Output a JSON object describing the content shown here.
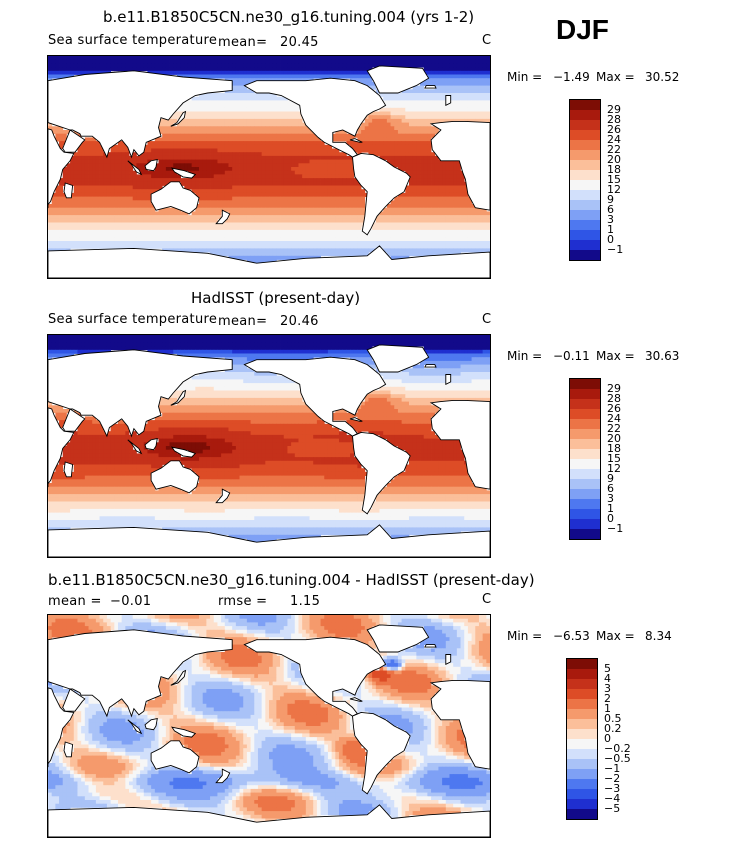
{
  "season": "DJF",
  "colors": {
    "sst_scale": [
      "#120a8a",
      "#1f2fd0",
      "#2f55e6",
      "#4e78f0",
      "#7ea0f5",
      "#a9c2f7",
      "#d2e0fb",
      "#f6f6f6",
      "#fde0cc",
      "#fbbf9a",
      "#f59a6c",
      "#ec7446",
      "#dd4c26",
      "#c5311a",
      "#a81a0d",
      "#7d0d05"
    ],
    "diff_scale": [
      "#120a8a",
      "#1f2fd0",
      "#2f55e6",
      "#4e78f0",
      "#7ea0f5",
      "#a9c2f7",
      "#d2e0fb",
      "#f6f6f6",
      "#fde0cc",
      "#fbbf9a",
      "#f59a6c",
      "#ec7446",
      "#dd4c26",
      "#c5311a",
      "#a81a0d",
      "#7d0d05"
    ],
    "land": "#ffffff",
    "coast": "#000000"
  },
  "panels": [
    {
      "id": "model",
      "title": "b.e11.B1850C5CN.ne30_g16.tuning.004 (yrs 1-2)",
      "left_label": "Sea surface temperature",
      "stat_label": "mean=",
      "stat_value": "20.45",
      "stat2_label": "",
      "stat2_value": "",
      "units": "C",
      "min_label": "Min =",
      "min_value": "−1.49",
      "max_label": "Max =",
      "max_value": "30.52",
      "colorbar_ticks": [
        "29",
        "28",
        "26",
        "24",
        "22",
        "20",
        "18",
        "15",
        "12",
        "9",
        "6",
        "3",
        "1",
        "0",
        "−1"
      ],
      "field": "sst"
    },
    {
      "id": "obs",
      "title": "HadISST (present-day)",
      "left_label": "Sea surface temperature",
      "stat_label": "mean=",
      "stat_value": "20.46",
      "stat2_label": "",
      "stat2_value": "",
      "units": "C",
      "min_label": "Min =",
      "min_value": "−0.11",
      "max_label": "Max =",
      "max_value": "30.63",
      "colorbar_ticks": [
        "29",
        "28",
        "26",
        "24",
        "22",
        "20",
        "18",
        "15",
        "12",
        "9",
        "6",
        "3",
        "1",
        "0",
        "−1"
      ],
      "field": "sst"
    },
    {
      "id": "diff",
      "title": "b.e11.B1850C5CN.ne30_g16.tuning.004 - HadISST (present-day)",
      "left_label": "",
      "stat_label": "mean =",
      "stat_value": "−0.01",
      "stat2_label": "rmse =",
      "stat2_value": "1.15",
      "units": "C",
      "min_label": "Min =",
      "min_value": "−6.53",
      "max_label": "Max =",
      "max_value": "8.34",
      "colorbar_ticks": [
        "5",
        "4",
        "3",
        "2",
        "1",
        "0.5",
        "0.2",
        "0",
        "−0.2",
        "−0.5",
        "−1",
        "−2",
        "−3",
        "−4",
        "−5"
      ],
      "field": "diff"
    }
  ]
}
